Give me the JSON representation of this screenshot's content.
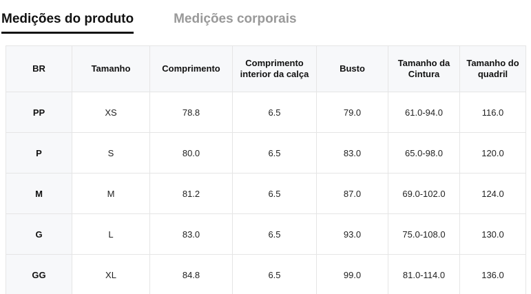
{
  "tabs": [
    {
      "label": "Medições do produto",
      "active": true
    },
    {
      "label": "Medições corporais",
      "active": false
    }
  ],
  "colors": {
    "tab_active_text": "#111111",
    "tab_inactive_text": "#999999",
    "tab_active_underline": "#111111",
    "table_border": "#e5e5e5",
    "header_background": "#f7f8fa",
    "cell_text": "#222222"
  },
  "chart_data": {
    "type": "table",
    "title": "Medições do produto",
    "categories": [
      "BR",
      "Tamanho",
      "Comprimento",
      "Comprimento interior da calça",
      "Busto",
      "Tamanho da Cintura",
      "Tamanho do quadril"
    ],
    "rows": [
      [
        "PP",
        "XS",
        "78.8",
        "6.5",
        "79.0",
        "61.0-94.0",
        "116.0"
      ],
      [
        "P",
        "S",
        "80.0",
        "6.5",
        "83.0",
        "65.0-98.0",
        "120.0"
      ],
      [
        "M",
        "M",
        "81.2",
        "6.5",
        "87.0",
        "69.0-102.0",
        "124.0"
      ],
      [
        "G",
        "L",
        "83.0",
        "6.5",
        "93.0",
        "75.0-108.0",
        "130.0"
      ],
      [
        "GG",
        "XL",
        "84.8",
        "6.5",
        "99.0",
        "81.0-114.0",
        "136.0"
      ]
    ]
  },
  "table": {
    "headers": [
      "BR",
      "Tamanho",
      "Comprimento",
      "Comprimento interior da calça",
      "Busto",
      "Tamanho da Cintura",
      "Tamanho do quadril"
    ],
    "rows": [
      [
        "PP",
        "XS",
        "78.8",
        "6.5",
        "79.0",
        "61.0-94.0",
        "116.0"
      ],
      [
        "P",
        "S",
        "80.0",
        "6.5",
        "83.0",
        "65.0-98.0",
        "120.0"
      ],
      [
        "M",
        "M",
        "81.2",
        "6.5",
        "87.0",
        "69.0-102.0",
        "124.0"
      ],
      [
        "G",
        "L",
        "83.0",
        "6.5",
        "93.0",
        "75.0-108.0",
        "130.0"
      ],
      [
        "GG",
        "XL",
        "84.8",
        "6.5",
        "99.0",
        "81.0-114.0",
        "136.0"
      ]
    ]
  }
}
